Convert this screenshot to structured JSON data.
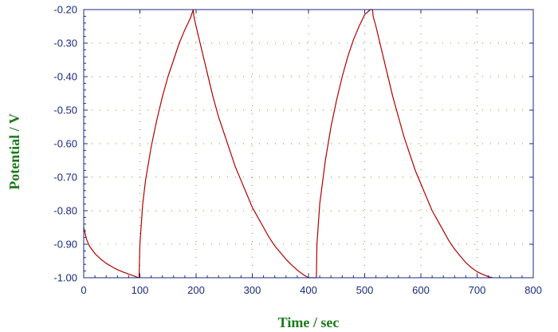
{
  "chart_data": {
    "type": "line",
    "xlabel": "Time / sec",
    "ylabel": "Potential / V",
    "xlim": [
      0,
      800
    ],
    "ylim": [
      -1.0,
      -0.2
    ],
    "x_ticks": [
      "0",
      "100",
      "200",
      "300",
      "400",
      "500",
      "600",
      "700",
      "800"
    ],
    "x_tick_values": [
      0,
      100,
      200,
      300,
      400,
      500,
      600,
      700,
      800
    ],
    "y_ticks": [
      "-0.20",
      "-0.30",
      "-0.40",
      "-0.50",
      "-0.60",
      "-0.70",
      "-0.80",
      "-0.90",
      "-1.00"
    ],
    "y_tick_values": [
      -0.2,
      -0.3,
      -0.4,
      -0.5,
      -0.6,
      -0.7,
      -0.8,
      -0.9,
      -1.0
    ],
    "grid": true,
    "legend": "none",
    "colors": {
      "line": "#b00000",
      "axis": "#1a2a80",
      "grid": "#8a8a30",
      "axis_title": "#1a7a1a"
    },
    "series": [
      {
        "x": [
          0,
          5,
          10,
          20,
          30,
          40,
          50,
          60,
          70,
          80,
          90,
          98,
          98.5,
          100,
          105,
          110,
          120,
          130,
          140,
          150,
          160,
          170,
          180,
          190,
          195,
          196,
          200,
          210,
          220,
          230,
          240,
          250,
          260,
          270,
          280,
          290,
          300,
          310,
          320,
          330,
          340,
          350,
          360,
          370,
          380,
          390,
          400,
          413,
          414,
          415,
          420,
          430,
          440,
          450,
          460,
          470,
          480,
          490,
          500,
          510,
          514,
          515,
          520,
          530,
          540,
          550,
          560,
          570,
          580,
          590,
          600,
          610,
          620,
          630,
          640,
          650,
          660,
          670,
          680,
          690,
          700,
          710,
          720,
          728
        ],
        "y": [
          -0.85,
          -0.885,
          -0.905,
          -0.928,
          -0.944,
          -0.957,
          -0.967,
          -0.976,
          -0.983,
          -0.989,
          -0.995,
          -1.0,
          -1.0,
          -0.9,
          -0.78,
          -0.71,
          -0.61,
          -0.53,
          -0.46,
          -0.4,
          -0.35,
          -0.3,
          -0.26,
          -0.225,
          -0.2,
          -0.22,
          -0.25,
          -0.32,
          -0.39,
          -0.46,
          -0.52,
          -0.57,
          -0.62,
          -0.67,
          -0.71,
          -0.75,
          -0.79,
          -0.82,
          -0.85,
          -0.88,
          -0.905,
          -0.925,
          -0.945,
          -0.962,
          -0.977,
          -0.99,
          -1.0,
          -1.0,
          -1.0,
          -0.9,
          -0.78,
          -0.65,
          -0.55,
          -0.47,
          -0.4,
          -0.34,
          -0.29,
          -0.25,
          -0.215,
          -0.2,
          -0.2,
          -0.22,
          -0.25,
          -0.32,
          -0.39,
          -0.46,
          -0.52,
          -0.58,
          -0.63,
          -0.68,
          -0.72,
          -0.76,
          -0.8,
          -0.83,
          -0.86,
          -0.89,
          -0.915,
          -0.935,
          -0.955,
          -0.97,
          -0.982,
          -0.99,
          -0.997,
          -1.0
        ]
      }
    ]
  }
}
